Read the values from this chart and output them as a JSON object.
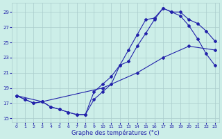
{
  "xlabel": "Graphe des températures (°c)",
  "background_color": "#cceee8",
  "grid_color": "#aacccc",
  "line_color": "#2222aa",
  "xlim": [
    -0.5,
    23.5
  ],
  "ylim": [
    14.5,
    30.2
  ],
  "xticks": [
    0,
    1,
    2,
    3,
    4,
    5,
    6,
    7,
    8,
    9,
    10,
    11,
    12,
    13,
    14,
    15,
    16,
    17,
    18,
    19,
    20,
    21,
    22,
    23
  ],
  "yticks": [
    15,
    17,
    19,
    21,
    23,
    25,
    27,
    29
  ],
  "line1_x": [
    0,
    1,
    2,
    3,
    4,
    5,
    6,
    7,
    8,
    9,
    10,
    11,
    12,
    13,
    14,
    15,
    16,
    17,
    18,
    19,
    20,
    21,
    22,
    23
  ],
  "line1_y": [
    18.0,
    17.5,
    17.0,
    17.2,
    16.5,
    16.2,
    15.8,
    15.5,
    15.5,
    17.5,
    18.5,
    19.5,
    22.0,
    24.0,
    26.0,
    28.0,
    28.2,
    29.5,
    29.0,
    28.5,
    27.2,
    25.5,
    23.5,
    22.0
  ],
  "line2_x": [
    0,
    1,
    2,
    3,
    4,
    5,
    6,
    7,
    8,
    9,
    10,
    11,
    12,
    13,
    14,
    15,
    16,
    17,
    18,
    19,
    20,
    21,
    22,
    23
  ],
  "line2_y": [
    18.0,
    17.5,
    17.0,
    17.2,
    16.5,
    16.2,
    15.8,
    15.5,
    15.5,
    18.5,
    19.5,
    20.5,
    22.0,
    22.5,
    24.5,
    26.2,
    28.0,
    29.5,
    29.0,
    29.0,
    28.0,
    27.5,
    26.5,
    25.2
  ],
  "line3_x": [
    0,
    3,
    10,
    14,
    17,
    20,
    23
  ],
  "line3_y": [
    18.0,
    17.2,
    19.0,
    21.0,
    23.0,
    24.5,
    24.0
  ]
}
